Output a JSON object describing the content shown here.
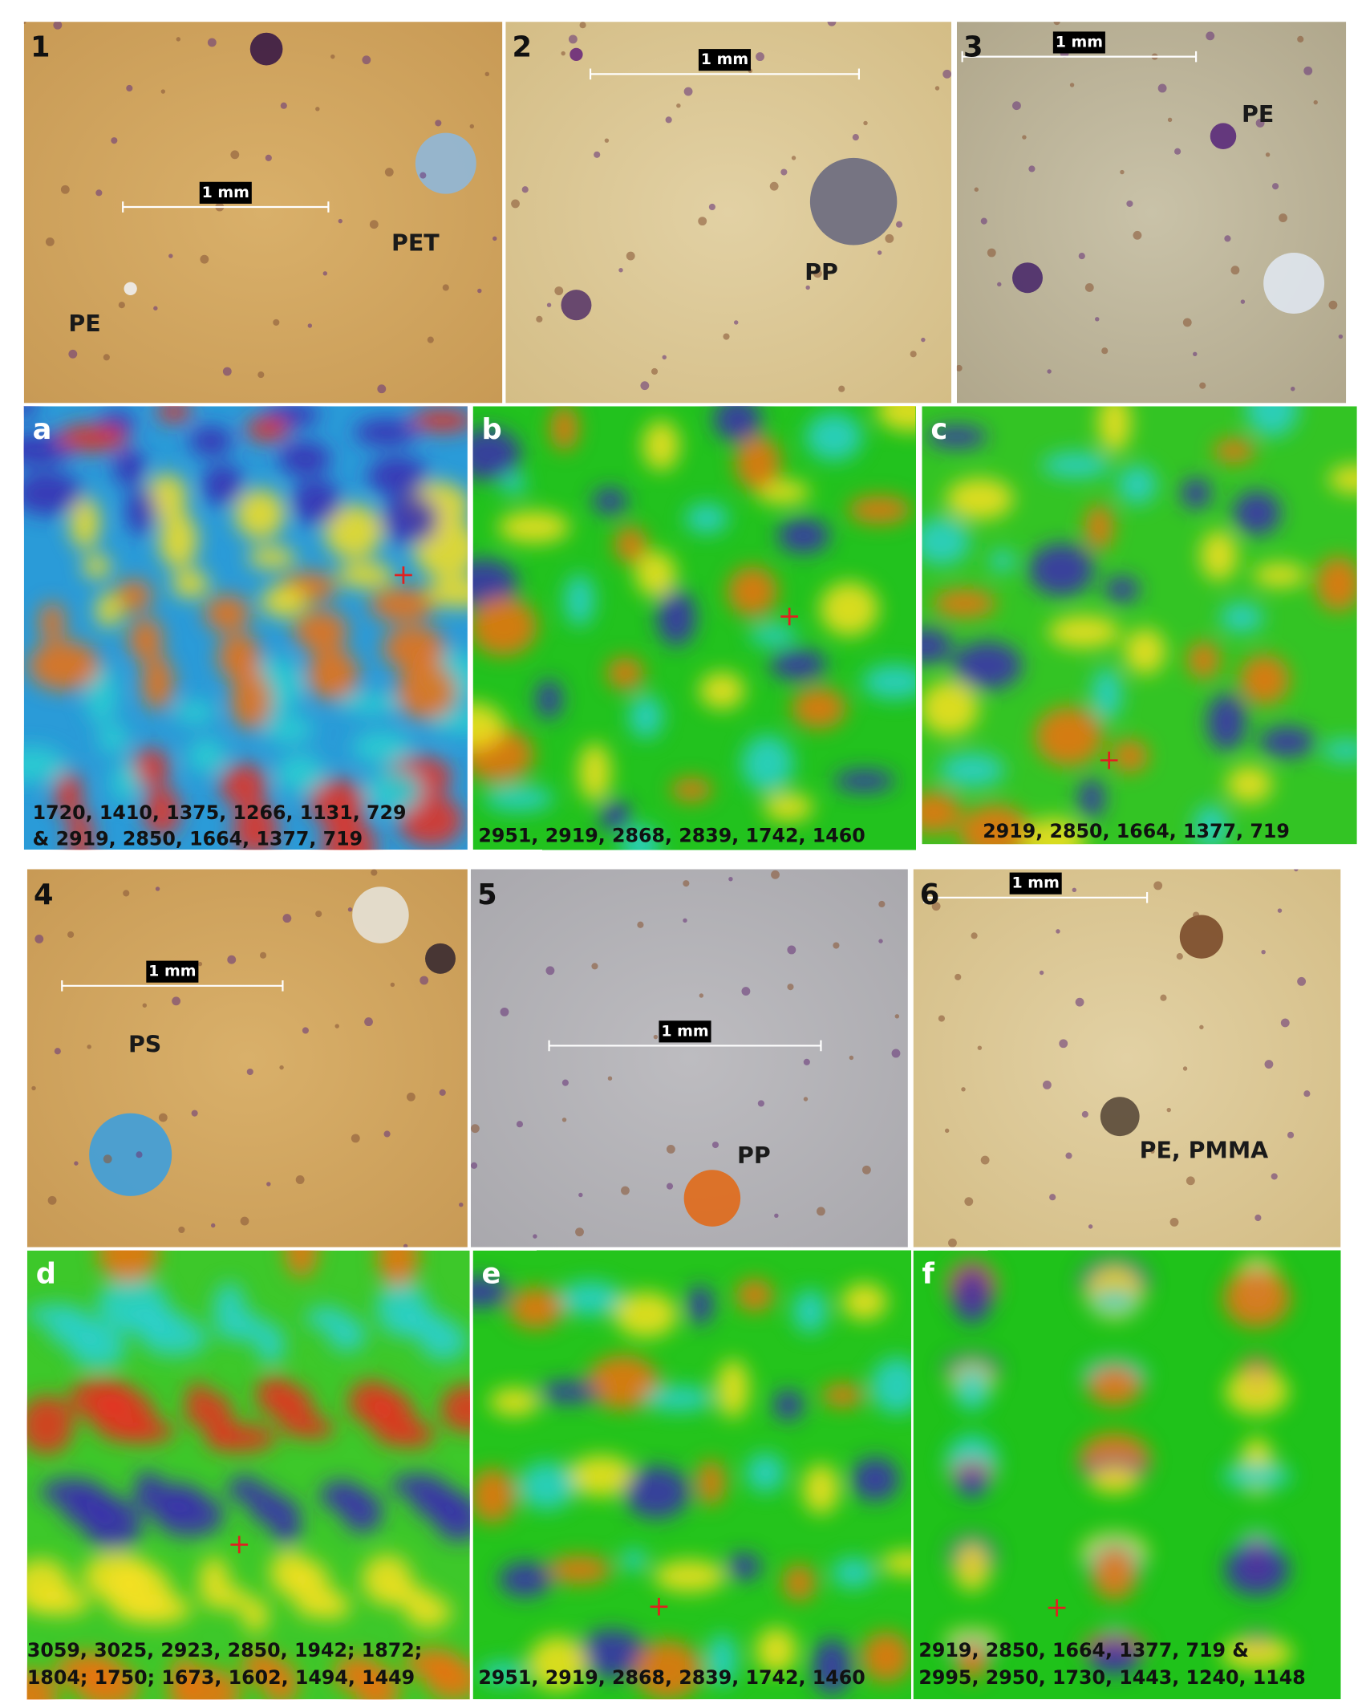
{
  "photos": [
    {
      "label": "1",
      "scale": "1 mm",
      "polymers": [
        "PET",
        "PE"
      ]
    },
    {
      "label": "2",
      "scale": "1 mm",
      "polymers": [
        "PP"
      ]
    },
    {
      "label": "3",
      "scale": "1 mm",
      "polymers": [
        "PE"
      ]
    },
    {
      "label": "4",
      "scale": "1 mm",
      "polymers": [
        "PS"
      ]
    },
    {
      "label": "5",
      "scale": "1 mm",
      "polymers": [
        "PP"
      ]
    },
    {
      "label": "6",
      "scale": "1 mm",
      "polymers": [
        "PE, PMMA"
      ]
    }
  ],
  "maps": [
    {
      "label": "a",
      "peaks": [
        "1720, 1410, 1375, 1266, 1131, 729",
        "& 2919, 2850, 1664, 1377, 719"
      ]
    },
    {
      "label": "b",
      "peaks": [
        "2951, 2919, 2868, 2839, 1742, 1460"
      ]
    },
    {
      "label": "c",
      "peaks": [
        "2919, 2850, 1664, 1377, 719"
      ]
    },
    {
      "label": "d",
      "peaks": [
        "3059, 3025, 2923, 2850, 1942; 1872;",
        "1804; 1750; 1673, 1602, 1494, 1449"
      ]
    },
    {
      "label": "e",
      "peaks": [
        "2951, 2919, 2868, 2839, 1742, 1460"
      ]
    },
    {
      "label": "f",
      "peaks": [
        "2919, 2850, 1664, 1377, 719 &",
        "2995, 2950, 1730, 1443, 1240, 1148"
      ]
    }
  ]
}
